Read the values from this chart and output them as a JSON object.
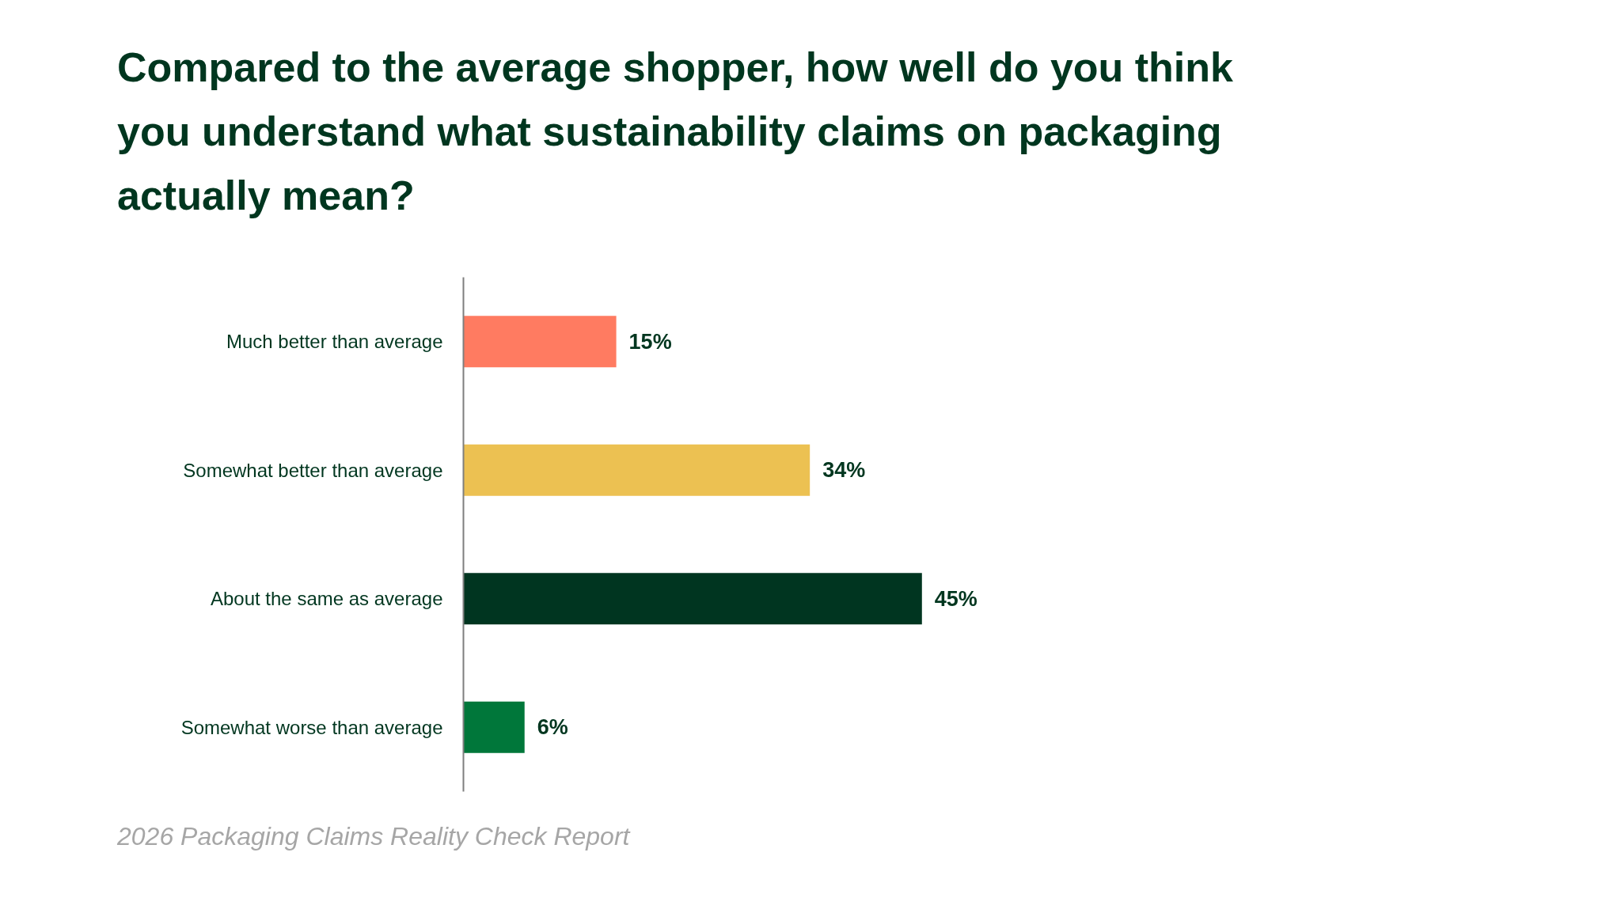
{
  "chart_data": {
    "type": "bar",
    "orientation": "horizontal",
    "title": "Compared to the average shopper, how well do you think you understand what sustainability claims on packaging actually mean?",
    "categories": [
      "Much better than average",
      "Somewhat better than average",
      "About the same as average",
      "Somewhat worse than average"
    ],
    "values": [
      15,
      34,
      45,
      6
    ],
    "colors": [
      "#ff7b61",
      "#ecc152",
      "#003520",
      "#00773a"
    ],
    "value_labels": [
      "15%",
      "34%",
      "45%",
      "6%"
    ],
    "tick_labels": "y",
    "grid": false,
    "annotations": [
      "2026 Packaging Claims Reality Check Report"
    ]
  }
}
